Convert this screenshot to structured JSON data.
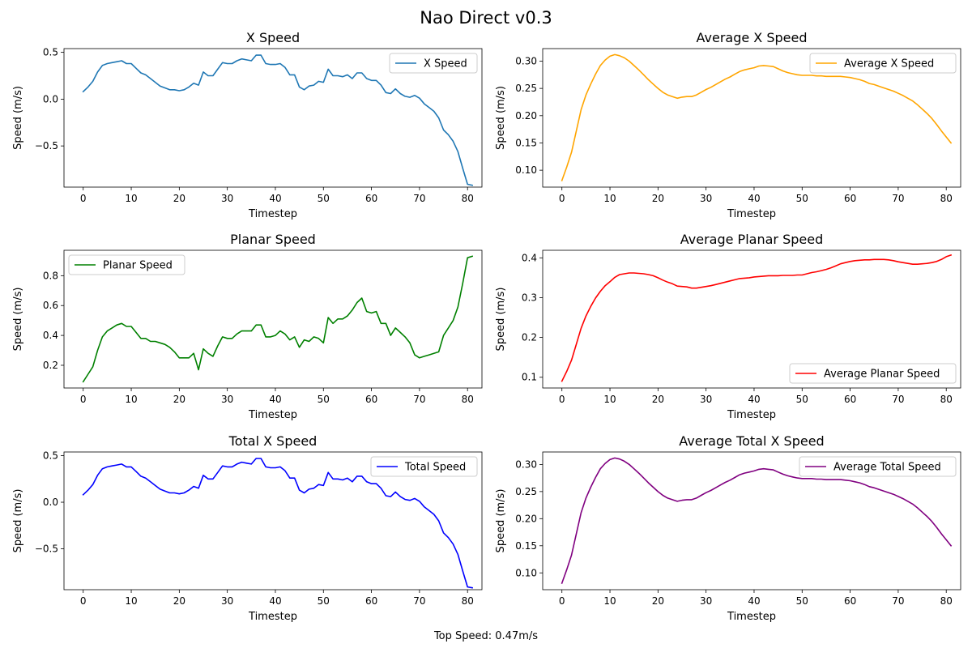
{
  "figure": {
    "suptitle": "Nao Direct v0.3",
    "footer": "Top Speed: 0.47m/s"
  },
  "chart_data": [
    {
      "type": "line",
      "title": "X Speed",
      "xlabel": "Timestep",
      "ylabel": "Speed (m/s)",
      "xlim": [
        -4,
        83
      ],
      "ylim": [
        -0.94,
        0.54
      ],
      "xticks": [
        0,
        10,
        20,
        30,
        40,
        50,
        60,
        70,
        80
      ],
      "yticks": [
        0.5,
        0.0,
        -0.5
      ],
      "ytick_labels": [
        "0.5",
        "0.0",
        "−0.5"
      ],
      "legend": "top-right",
      "series": [
        {
          "name": "X Speed",
          "color": "#1f77b4",
          "values": [
            0.08,
            0.13,
            0.19,
            0.29,
            0.36,
            0.38,
            0.39,
            0.4,
            0.41,
            0.38,
            0.38,
            0.33,
            0.28,
            0.26,
            0.22,
            0.18,
            0.14,
            0.12,
            0.1,
            0.1,
            0.09,
            0.1,
            0.13,
            0.17,
            0.15,
            0.29,
            0.25,
            0.25,
            0.32,
            0.39,
            0.38,
            0.38,
            0.41,
            0.43,
            0.42,
            0.41,
            0.47,
            0.47,
            0.38,
            0.37,
            0.37,
            0.38,
            0.34,
            0.26,
            0.26,
            0.13,
            0.1,
            0.14,
            0.15,
            0.19,
            0.18,
            0.32,
            0.25,
            0.25,
            0.24,
            0.26,
            0.22,
            0.28,
            0.28,
            0.22,
            0.2,
            0.2,
            0.15,
            0.07,
            0.06,
            0.11,
            0.06,
            0.03,
            0.02,
            0.04,
            0.01,
            -0.05,
            -0.09,
            -0.13,
            -0.2,
            -0.33,
            -0.38,
            -0.45,
            -0.56,
            -0.74,
            -0.91,
            -0.92
          ]
        }
      ]
    },
    {
      "type": "line",
      "title": "Average X Speed",
      "xlabel": "Timestep",
      "ylabel": "Speed (m/s)",
      "xlim": [
        -4,
        83
      ],
      "ylim": [
        0.069,
        0.323
      ],
      "xticks": [
        0,
        10,
        20,
        30,
        40,
        50,
        60,
        70,
        80
      ],
      "yticks": [
        0.3,
        0.25,
        0.2,
        0.15,
        0.1
      ],
      "ytick_labels": [
        "0.30",
        "0.25",
        "0.20",
        "0.15",
        "0.10"
      ],
      "legend": "top-right",
      "series": [
        {
          "name": "Average X Speed",
          "color": "#ffa500",
          "values": [
            0.081,
            0.106,
            0.133,
            0.172,
            0.211,
            0.238,
            0.258,
            0.276,
            0.292,
            0.302,
            0.309,
            0.312,
            0.31,
            0.306,
            0.3,
            0.292,
            0.284,
            0.275,
            0.266,
            0.258,
            0.25,
            0.243,
            0.238,
            0.235,
            0.232,
            0.234,
            0.235,
            0.235,
            0.238,
            0.243,
            0.248,
            0.252,
            0.257,
            0.262,
            0.267,
            0.271,
            0.276,
            0.281,
            0.284,
            0.286,
            0.288,
            0.291,
            0.292,
            0.291,
            0.29,
            0.286,
            0.282,
            0.279,
            0.277,
            0.275,
            0.274,
            0.274,
            0.274,
            0.273,
            0.273,
            0.272,
            0.272,
            0.272,
            0.272,
            0.271,
            0.27,
            0.268,
            0.266,
            0.263,
            0.259,
            0.257,
            0.254,
            0.251,
            0.248,
            0.245,
            0.241,
            0.237,
            0.232,
            0.227,
            0.22,
            0.212,
            0.204,
            0.195,
            0.184,
            0.172,
            0.161,
            0.15
          ]
        }
      ]
    },
    {
      "type": "line",
      "title": "Planar Speed",
      "xlabel": "Timestep",
      "ylabel": "Speed (m/s)",
      "xlim": [
        -4,
        83
      ],
      "ylim": [
        0.048,
        0.97
      ],
      "xticks": [
        0,
        10,
        20,
        30,
        40,
        50,
        60,
        70,
        80
      ],
      "yticks": [
        0.8,
        0.6,
        0.4,
        0.2
      ],
      "ytick_labels": [
        "0.8",
        "0.6",
        "0.4",
        "0.2"
      ],
      "legend": "top-left",
      "series": [
        {
          "name": "Planar Speed",
          "color": "#008000",
          "values": [
            0.09,
            0.14,
            0.19,
            0.3,
            0.39,
            0.43,
            0.45,
            0.47,
            0.48,
            0.46,
            0.46,
            0.42,
            0.38,
            0.38,
            0.36,
            0.36,
            0.35,
            0.34,
            0.32,
            0.29,
            0.25,
            0.25,
            0.25,
            0.28,
            0.17,
            0.31,
            0.28,
            0.26,
            0.33,
            0.39,
            0.38,
            0.38,
            0.41,
            0.43,
            0.43,
            0.43,
            0.47,
            0.47,
            0.39,
            0.39,
            0.4,
            0.43,
            0.41,
            0.37,
            0.39,
            0.32,
            0.37,
            0.36,
            0.39,
            0.38,
            0.35,
            0.52,
            0.48,
            0.51,
            0.51,
            0.53,
            0.57,
            0.62,
            0.65,
            0.56,
            0.55,
            0.56,
            0.48,
            0.48,
            0.4,
            0.45,
            0.42,
            0.39,
            0.35,
            0.27,
            0.25,
            0.26,
            0.27,
            0.28,
            0.29,
            0.4,
            0.45,
            0.5,
            0.59,
            0.75,
            0.92,
            0.93
          ]
        }
      ]
    },
    {
      "type": "line",
      "title": "Average Planar Speed",
      "xlabel": "Timestep",
      "ylabel": "Speed (m/s)",
      "xlim": [
        -4,
        83
      ],
      "ylim": [
        0.073,
        0.419
      ],
      "xticks": [
        0,
        10,
        20,
        30,
        40,
        50,
        60,
        70,
        80
      ],
      "yticks": [
        0.4,
        0.3,
        0.2,
        0.1
      ],
      "ytick_labels": [
        "0.4",
        "0.3",
        "0.2",
        "0.1"
      ],
      "legend": "bottom-right",
      "series": [
        {
          "name": "Average Planar Speed",
          "color": "#ff0000",
          "values": [
            0.09,
            0.115,
            0.143,
            0.183,
            0.223,
            0.254,
            0.278,
            0.299,
            0.316,
            0.33,
            0.34,
            0.351,
            0.358,
            0.36,
            0.362,
            0.362,
            0.361,
            0.36,
            0.358,
            0.355,
            0.35,
            0.344,
            0.339,
            0.335,
            0.329,
            0.328,
            0.327,
            0.324,
            0.324,
            0.326,
            0.328,
            0.33,
            0.333,
            0.336,
            0.339,
            0.342,
            0.345,
            0.348,
            0.349,
            0.35,
            0.352,
            0.353,
            0.354,
            0.355,
            0.355,
            0.355,
            0.356,
            0.356,
            0.356,
            0.357,
            0.357,
            0.36,
            0.363,
            0.365,
            0.368,
            0.371,
            0.375,
            0.38,
            0.385,
            0.388,
            0.391,
            0.393,
            0.394,
            0.395,
            0.395,
            0.396,
            0.396,
            0.396,
            0.395,
            0.393,
            0.39,
            0.388,
            0.386,
            0.384,
            0.384,
            0.385,
            0.386,
            0.388,
            0.391,
            0.396,
            0.403,
            0.407
          ]
        }
      ]
    },
    {
      "type": "line",
      "title": "Total X Speed",
      "xlabel": "Timestep",
      "ylabel": "Speed (m/s)",
      "xlim": [
        -4,
        83
      ],
      "ylim": [
        -0.94,
        0.54
      ],
      "xticks": [
        0,
        10,
        20,
        30,
        40,
        50,
        60,
        70,
        80
      ],
      "yticks": [
        0.5,
        0.0,
        -0.5
      ],
      "ytick_labels": [
        "0.5",
        "0.0",
        "−0.5"
      ],
      "legend": "top-right",
      "series": [
        {
          "name": "Total Speed",
          "color": "#0000ff",
          "values": [
            0.08,
            0.13,
            0.19,
            0.29,
            0.36,
            0.38,
            0.39,
            0.4,
            0.41,
            0.38,
            0.38,
            0.33,
            0.28,
            0.26,
            0.22,
            0.18,
            0.14,
            0.12,
            0.1,
            0.1,
            0.09,
            0.1,
            0.13,
            0.17,
            0.15,
            0.29,
            0.25,
            0.25,
            0.32,
            0.39,
            0.38,
            0.38,
            0.41,
            0.43,
            0.42,
            0.41,
            0.47,
            0.47,
            0.38,
            0.37,
            0.37,
            0.38,
            0.34,
            0.26,
            0.26,
            0.13,
            0.1,
            0.14,
            0.15,
            0.19,
            0.18,
            0.32,
            0.25,
            0.25,
            0.24,
            0.26,
            0.22,
            0.28,
            0.28,
            0.22,
            0.2,
            0.2,
            0.15,
            0.07,
            0.06,
            0.11,
            0.06,
            0.03,
            0.02,
            0.04,
            0.01,
            -0.05,
            -0.09,
            -0.13,
            -0.2,
            -0.33,
            -0.38,
            -0.45,
            -0.56,
            -0.74,
            -0.91,
            -0.92
          ]
        }
      ]
    },
    {
      "type": "line",
      "title": "Average Total X Speed",
      "xlabel": "Timestep",
      "ylabel": "Speed (m/s)",
      "xlim": [
        -4,
        83
      ],
      "ylim": [
        0.069,
        0.323
      ],
      "xticks": [
        0,
        10,
        20,
        30,
        40,
        50,
        60,
        70,
        80
      ],
      "yticks": [
        0.3,
        0.25,
        0.2,
        0.15,
        0.1
      ],
      "ytick_labels": [
        "0.30",
        "0.25",
        "0.20",
        "0.15",
        "0.10"
      ],
      "legend": "top-right",
      "series": [
        {
          "name": "Average Total Speed",
          "color": "#800080",
          "values": [
            0.081,
            0.106,
            0.133,
            0.172,
            0.211,
            0.238,
            0.258,
            0.276,
            0.292,
            0.302,
            0.309,
            0.312,
            0.31,
            0.306,
            0.3,
            0.292,
            0.284,
            0.275,
            0.266,
            0.258,
            0.25,
            0.243,
            0.238,
            0.235,
            0.232,
            0.234,
            0.235,
            0.235,
            0.238,
            0.243,
            0.248,
            0.252,
            0.257,
            0.262,
            0.267,
            0.271,
            0.276,
            0.281,
            0.284,
            0.286,
            0.288,
            0.291,
            0.292,
            0.291,
            0.29,
            0.286,
            0.282,
            0.279,
            0.277,
            0.275,
            0.274,
            0.274,
            0.274,
            0.273,
            0.273,
            0.272,
            0.272,
            0.272,
            0.272,
            0.271,
            0.27,
            0.268,
            0.266,
            0.263,
            0.259,
            0.257,
            0.254,
            0.251,
            0.248,
            0.245,
            0.241,
            0.237,
            0.232,
            0.227,
            0.22,
            0.212,
            0.204,
            0.195,
            0.184,
            0.172,
            0.161,
            0.15
          ]
        }
      ]
    }
  ]
}
